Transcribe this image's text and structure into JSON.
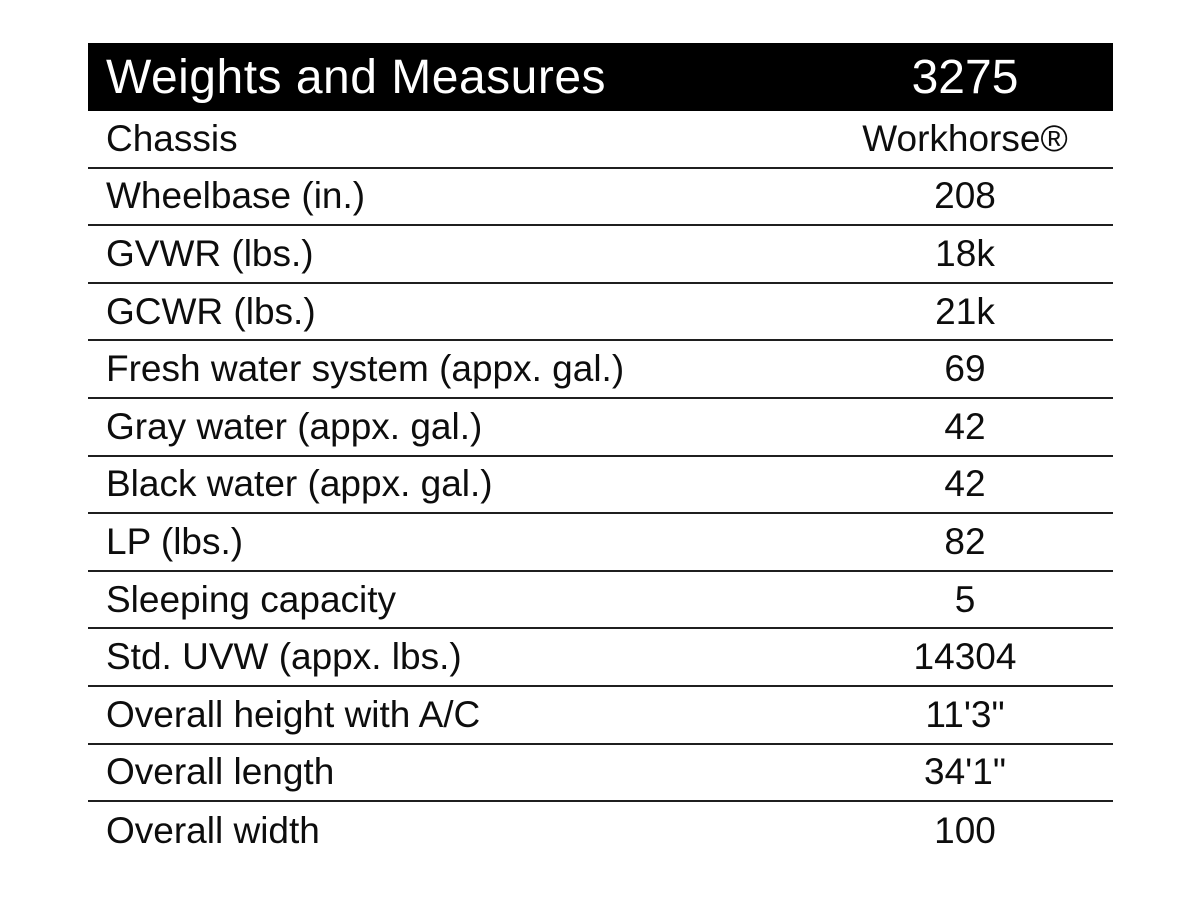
{
  "header": {
    "title": "Weights and Measures",
    "model": "3275"
  },
  "rows": [
    {
      "label": "Chassis",
      "value": "Workhorse®"
    },
    {
      "label": "Wheelbase (in.)",
      "value": "208"
    },
    {
      "label": "GVWR (lbs.)",
      "value": "18k"
    },
    {
      "label": "GCWR (lbs.)",
      "value": "21k"
    },
    {
      "label": "Fresh water system (appx. gal.)",
      "value": "69"
    },
    {
      "label": "Gray water (appx. gal.)",
      "value": "42"
    },
    {
      "label": "Black water (appx. gal.)",
      "value": "42"
    },
    {
      "label": "LP (lbs.)",
      "value": "82"
    },
    {
      "label": "Sleeping capacity",
      "value": "5"
    },
    {
      "label": "Std. UVW (appx. lbs.)",
      "value": "14304"
    },
    {
      "label": "Overall height with A/C",
      "value": "11'3\""
    },
    {
      "label": "Overall length",
      "value": "34'1\""
    },
    {
      "label": "Overall width",
      "value": "100"
    }
  ],
  "colors": {
    "header_bg": "#000000",
    "header_text": "#ffffff",
    "body_text": "#0d0d0d",
    "divider": "#1f1f1f",
    "background": "#ffffff"
  }
}
